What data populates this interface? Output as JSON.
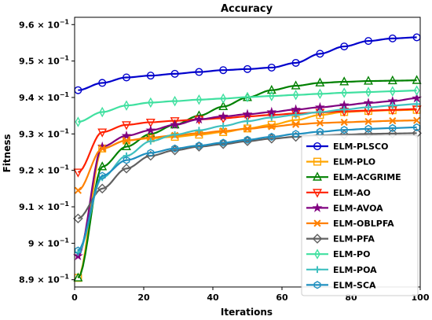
{
  "chart_data": {
    "type": "line",
    "title": "Accuracy",
    "xlabel": "Iterations",
    "ylabel": "Fitness",
    "xlim": [
      0,
      100
    ],
    "ylim": [
      0.888,
      0.962
    ],
    "x_ticks": [
      0,
      20,
      40,
      60,
      80,
      100
    ],
    "y_ticks": [
      {
        "value": 0.89,
        "mantissa": "8.9"
      },
      {
        "value": 0.9,
        "mantissa": "9"
      },
      {
        "value": 0.91,
        "mantissa": "9.1"
      },
      {
        "value": 0.92,
        "mantissa": "9.2"
      },
      {
        "value": 0.93,
        "mantissa": "9.3"
      },
      {
        "value": 0.94,
        "mantissa": "9.4"
      },
      {
        "value": 0.95,
        "mantissa": "9.5"
      },
      {
        "value": 0.96,
        "mantissa": "9.6"
      }
    ],
    "y_tick_base": "× 10",
    "y_tick_exponent": "−1",
    "grid": false,
    "legend_position": "center-right",
    "x": [
      1,
      8,
      15,
      22,
      29,
      36,
      43,
      50,
      57,
      64,
      71,
      78,
      85,
      92,
      99
    ],
    "series": [
      {
        "name": "ELM-PLSCO",
        "color": "#0000cc",
        "marker": "circle",
        "values": [
          0.942,
          0.944,
          0.9455,
          0.946,
          0.9465,
          0.947,
          0.9475,
          0.9478,
          0.9482,
          0.9495,
          0.952,
          0.954,
          0.9555,
          0.9562,
          0.9565
        ]
      },
      {
        "name": "ELM-PLO",
        "color": "#ffa500",
        "marker": "square",
        "values": [
          0.8905,
          0.926,
          0.9282,
          0.9288,
          0.9292,
          0.9298,
          0.9305,
          0.9315,
          0.9325,
          0.9338,
          0.9352,
          0.936,
          0.9363,
          0.9365,
          0.9366
        ]
      },
      {
        "name": "ELM-ACGRIME",
        "color": "#008000",
        "marker": "triangle-up",
        "values": [
          0.8905,
          0.921,
          0.9265,
          0.93,
          0.9325,
          0.935,
          0.9375,
          0.94,
          0.942,
          0.9432,
          0.944,
          0.9443,
          0.9445,
          0.9446,
          0.9447
        ]
      },
      {
        "name": "ELM-AO",
        "color": "#ff2000",
        "marker": "triangle-down",
        "values": [
          0.9195,
          0.9305,
          0.9325,
          0.9332,
          0.9336,
          0.934,
          0.9343,
          0.9348,
          0.9352,
          0.9356,
          0.9359,
          0.9362,
          0.9364,
          0.9366,
          0.9368
        ]
      },
      {
        "name": "ELM-AVOA",
        "color": "#800080",
        "marker": "star",
        "values": [
          0.8965,
          0.9265,
          0.9295,
          0.931,
          0.9325,
          0.934,
          0.9348,
          0.9354,
          0.936,
          0.9367,
          0.9373,
          0.9379,
          0.9385,
          0.939,
          0.9398
        ]
      },
      {
        "name": "ELM-OBLPFA",
        "color": "#ff8000",
        "marker": "x",
        "values": [
          0.9145,
          0.926,
          0.9282,
          0.929,
          0.9296,
          0.9302,
          0.9308,
          0.9314,
          0.932,
          0.9326,
          0.933,
          0.9332,
          0.9334,
          0.9336,
          0.9337
        ]
      },
      {
        "name": "ELM-PFA",
        "color": "#606060",
        "marker": "diamond",
        "values": [
          0.9068,
          0.915,
          0.9205,
          0.924,
          0.9255,
          0.9265,
          0.9272,
          0.928,
          0.9287,
          0.9292,
          0.9296,
          0.9298,
          0.93,
          0.9301,
          0.9302
        ]
      },
      {
        "name": "ELM-PO",
        "color": "#40e0a0",
        "marker": "thin-diamond",
        "values": [
          0.9333,
          0.936,
          0.9378,
          0.9386,
          0.939,
          0.9394,
          0.9397,
          0.9401,
          0.9404,
          0.9407,
          0.941,
          0.9413,
          0.9415,
          0.9417,
          0.9419
        ]
      },
      {
        "name": "ELM-POA",
        "color": "#40c0c0",
        "marker": "plus",
        "values": [
          0.8975,
          0.918,
          0.924,
          0.928,
          0.9298,
          0.931,
          0.9322,
          0.9335,
          0.9345,
          0.9352,
          0.936,
          0.9367,
          0.9373,
          0.9378,
          0.9382
        ]
      },
      {
        "name": "ELM-SCA",
        "color": "#1f8fbf",
        "marker": "hexagon",
        "values": [
          0.898,
          0.9185,
          0.9228,
          0.9248,
          0.926,
          0.9268,
          0.9276,
          0.9284,
          0.9292,
          0.93,
          0.9306,
          0.9311,
          0.9314,
          0.9316,
          0.9318
        ]
      }
    ]
  }
}
